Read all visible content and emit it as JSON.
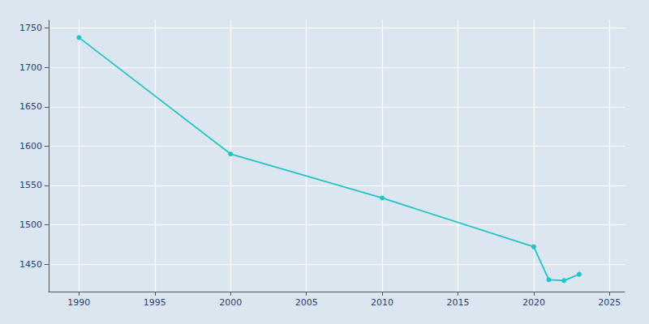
{
  "chart_data": {
    "type": "line",
    "x": [
      1990,
      2000,
      2010,
      2020,
      2021,
      2022,
      2023
    ],
    "values": [
      1738,
      1590,
      1534,
      1472,
      1430,
      1429,
      1437
    ],
    "color": "#22c5c5",
    "marker": "circle",
    "xlim": [
      1988,
      2026
    ],
    "ylim": [
      1415,
      1760
    ],
    "xticks": [
      1990,
      1995,
      2000,
      2005,
      2010,
      2015,
      2020,
      2025
    ],
    "yticks": [
      1450,
      1500,
      1550,
      1600,
      1650,
      1700,
      1750
    ],
    "grid": true
  }
}
